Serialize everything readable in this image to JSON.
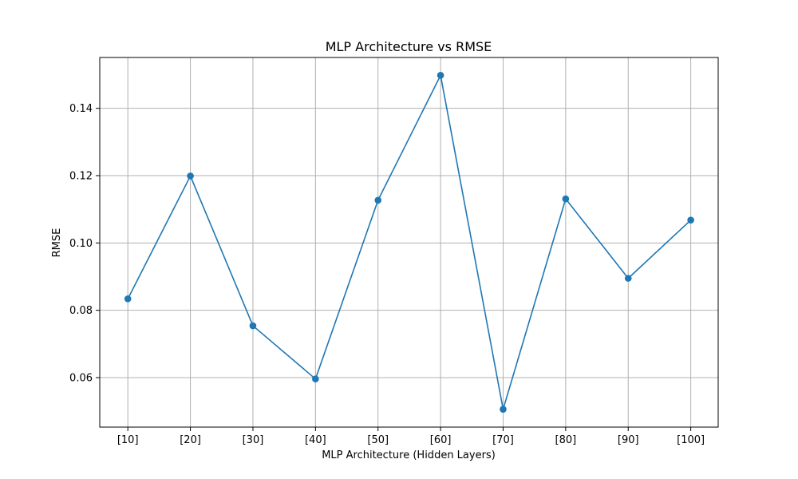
{
  "chart_data": {
    "type": "line",
    "title": "MLP Architecture vs RMSE",
    "xlabel": "MLP Architecture (Hidden Layers)",
    "ylabel": "RMSE",
    "categories": [
      "[10]",
      "[20]",
      "[30]",
      "[40]",
      "[50]",
      "[60]",
      "[70]",
      "[80]",
      "[90]",
      "[100]"
    ],
    "series": [
      {
        "values": [
          0.0834,
          0.1199,
          0.0754,
          0.0596,
          0.1127,
          0.1498,
          0.0506,
          0.1131,
          0.0895,
          0.1068
        ],
        "color": "#1f77b4",
        "marker": "circle"
      }
    ],
    "ylim": [
      0.0453,
      0.1551
    ],
    "yticks": [
      0.06,
      0.08,
      0.1,
      0.12,
      0.14
    ],
    "ytick_labels": [
      "0.06",
      "0.08",
      "0.10",
      "0.12",
      "0.14"
    ],
    "grid": true,
    "grid_color": "#b0b0b0"
  }
}
